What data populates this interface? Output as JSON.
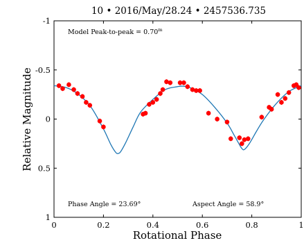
{
  "chart_data": {
    "type": "scatter",
    "title": "10 • 2016/May/28.24 • 2457536.735",
    "xlabel": "Rotational Phase",
    "ylabel": "Relative Magnitude",
    "xlim": [
      0,
      1
    ],
    "ylim": [
      -1,
      1
    ],
    "y_inverted": true,
    "grid": false,
    "x_ticks": [
      0,
      0.2,
      0.4,
      0.6,
      0.8,
      1
    ],
    "x_tick_labels": [
      "0",
      "0.2",
      "0.4",
      "0.6",
      "0.8",
      "1"
    ],
    "y_ticks": [
      -1,
      -0.5,
      0,
      0.5,
      1
    ],
    "y_tick_labels": [
      "-1",
      "-0.5",
      "0",
      "0.5",
      "1"
    ],
    "annotations": {
      "model": "Model Peak-to-peak = 0.70",
      "model_unit": "m",
      "phase_angle": "Phase Angle = 23.69°",
      "aspect_angle": "Aspect Angle = 58.9°"
    },
    "colors": {
      "points": "#ff0000",
      "model": "#1f77b4"
    },
    "points": {
      "x": [
        0.02,
        0.035,
        0.06,
        0.08,
        0.095,
        0.115,
        0.13,
        0.145,
        0.185,
        0.2,
        0.36,
        0.37,
        0.385,
        0.4,
        0.415,
        0.43,
        0.44,
        0.455,
        0.47,
        0.51,
        0.525,
        0.54,
        0.56,
        0.575,
        0.59,
        0.625,
        0.66,
        0.7,
        0.715,
        0.75,
        0.76,
        0.77,
        0.785,
        0.84,
        0.87,
        0.88,
        0.905,
        0.92,
        0.935,
        0.95,
        0.97,
        0.98,
        0.99
      ],
      "y": [
        -0.34,
        -0.31,
        -0.35,
        -0.3,
        -0.26,
        -0.23,
        -0.17,
        -0.14,
        0.02,
        0.08,
        -0.05,
        -0.06,
        -0.15,
        -0.17,
        -0.2,
        -0.26,
        -0.3,
        -0.38,
        -0.37,
        -0.37,
        -0.37,
        -0.33,
        -0.3,
        -0.29,
        -0.29,
        -0.06,
        0.0,
        0.03,
        0.2,
        0.19,
        0.25,
        0.21,
        0.2,
        -0.02,
        -0.12,
        -0.1,
        -0.25,
        -0.17,
        -0.21,
        -0.27,
        -0.34,
        -0.35,
        -0.32
      ],
      "err": [
        0.025,
        0.025,
        0.025,
        0.025,
        0.025,
        0.025,
        0.025,
        0.025,
        0.025,
        0.025,
        0.025,
        0.025,
        0.025,
        0.025,
        0.025,
        0.025,
        0.025,
        0.025,
        0.025,
        0.025,
        0.025,
        0.025,
        0.025,
        0.025,
        0.025,
        0.025,
        0.025,
        0.025,
        0.025,
        0.025,
        0.025,
        0.025,
        0.025,
        0.025,
        0.025,
        0.025,
        0.025,
        0.025,
        0.025,
        0.025,
        0.025,
        0.025,
        0.025
      ]
    },
    "model_curve": {
      "x": [
        0,
        0.05,
        0.1,
        0.15,
        0.2,
        0.23,
        0.25,
        0.26,
        0.27,
        0.29,
        0.32,
        0.35,
        0.4,
        0.45,
        0.5,
        0.52,
        0.55,
        0.6,
        0.65,
        0.7,
        0.73,
        0.75,
        0.76,
        0.77,
        0.79,
        0.82,
        0.85,
        0.9,
        0.95,
        1
      ],
      "y": [
        -0.34,
        -0.32,
        -0.25,
        -0.12,
        0.1,
        0.26,
        0.34,
        0.35,
        0.33,
        0.24,
        0.08,
        -0.07,
        -0.2,
        -0.3,
        -0.33,
        -0.335,
        -0.32,
        -0.25,
        -0.12,
        0.04,
        0.17,
        0.26,
        0.3,
        0.31,
        0.25,
        0.12,
        0.0,
        -0.16,
        -0.28,
        -0.34
      ]
    }
  }
}
